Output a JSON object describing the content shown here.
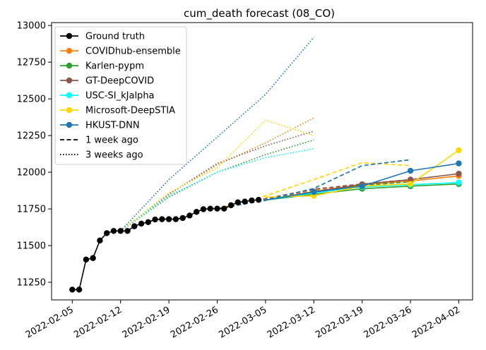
{
  "chart_data": {
    "type": "line",
    "title": "cum_death forecast (08_CO)",
    "xlabel": "",
    "ylabel": "",
    "x_ticks": [
      "2022-02-05",
      "2022-02-12",
      "2022-02-19",
      "2022-02-26",
      "2022-03-05",
      "2022-03-12",
      "2022-03-19",
      "2022-03-26",
      "2022-04-02"
    ],
    "y_ticks": [
      11250,
      11500,
      11750,
      12000,
      12250,
      12500,
      12750,
      13000
    ],
    "xlim": [
      "2022-02-02",
      "2022-04-04"
    ],
    "ylim": [
      11130,
      13020
    ],
    "grid": false,
    "legend_position": "top-left",
    "legend": [
      {
        "label": "Ground truth",
        "color": "#000000",
        "style": "solid-marker"
      },
      {
        "label": "COVIDhub-ensemble",
        "color": "#ff7f0e",
        "style": "solid-marker"
      },
      {
        "label": "Karlen-pypm",
        "color": "#2ca02c",
        "style": "solid-marker"
      },
      {
        "label": "GT-DeepCOVID",
        "color": "#8c564b",
        "style": "solid-marker"
      },
      {
        "label": "USC-SI_kJalpha",
        "color": "#00ffff",
        "style": "solid-marker"
      },
      {
        "label": "Microsoft-DeepSTIA",
        "color": "#ffd700",
        "style": "solid-marker"
      },
      {
        "label": "HKUST-DNN",
        "color": "#1f77b4",
        "style": "solid-marker"
      },
      {
        "label": "1 week ago",
        "color": "#000000",
        "style": "dashed"
      },
      {
        "label": "3 weeks ago",
        "color": "#000000",
        "style": "dotted"
      }
    ],
    "ground_truth": {
      "name": "Ground truth",
      "color": "#000000",
      "points": [
        [
          "2022-02-05",
          11200
        ],
        [
          "2022-02-06",
          11200
        ],
        [
          "2022-02-07",
          11405
        ],
        [
          "2022-02-08",
          11415
        ],
        [
          "2022-02-09",
          11535
        ],
        [
          "2022-02-10",
          11585
        ],
        [
          "2022-02-11",
          11600
        ],
        [
          "2022-02-12",
          11600
        ],
        [
          "2022-02-13",
          11600
        ],
        [
          "2022-02-14",
          11632
        ],
        [
          "2022-02-15",
          11650
        ],
        [
          "2022-02-16",
          11660
        ],
        [
          "2022-02-17",
          11678
        ],
        [
          "2022-02-18",
          11680
        ],
        [
          "2022-02-19",
          11680
        ],
        [
          "2022-02-20",
          11680
        ],
        [
          "2022-02-21",
          11688
        ],
        [
          "2022-02-22",
          11705
        ],
        [
          "2022-02-23",
          11730
        ],
        [
          "2022-02-24",
          11748
        ],
        [
          "2022-02-25",
          11752
        ],
        [
          "2022-02-26",
          11752
        ],
        [
          "2022-02-27",
          11752
        ],
        [
          "2022-02-28",
          11775
        ],
        [
          "2022-03-01",
          11795
        ],
        [
          "2022-03-02",
          11800
        ],
        [
          "2022-03-03",
          11808
        ],
        [
          "2022-03-04",
          11812
        ]
      ]
    },
    "forecasts": [
      {
        "name": "COVIDhub-ensemble",
        "color": "#ff7f0e",
        "style": "solid",
        "points": [
          [
            "2022-03-05",
            11810
          ],
          [
            "2022-03-12",
            11862
          ],
          [
            "2022-03-19",
            11915
          ],
          [
            "2022-03-26",
            11940
          ],
          [
            "2022-04-02",
            11975
          ]
        ]
      },
      {
        "name": "COVIDhub-ensemble",
        "color": "#ff7f0e",
        "style": "dashed",
        "points": [
          [
            "2022-02-26",
            11752
          ],
          [
            "2022-03-05",
            11815
          ],
          [
            "2022-03-12",
            11880
          ],
          [
            "2022-03-19",
            11915
          ],
          [
            "2022-03-26",
            11945
          ]
        ]
      },
      {
        "name": "COVIDhub-ensemble",
        "color": "#ff7f0e",
        "style": "dotted",
        "points": [
          [
            "2022-02-12",
            11600
          ],
          [
            "2022-02-19",
            11850
          ],
          [
            "2022-02-26",
            12050
          ],
          [
            "2022-03-05",
            12200
          ],
          [
            "2022-03-12",
            12370
          ]
        ]
      },
      {
        "name": "Karlen-pypm",
        "color": "#2ca02c",
        "style": "solid",
        "points": [
          [
            "2022-03-05",
            11810
          ],
          [
            "2022-03-12",
            11850
          ],
          [
            "2022-03-19",
            11888
          ],
          [
            "2022-03-26",
            11905
          ],
          [
            "2022-04-02",
            11920
          ]
        ]
      },
      {
        "name": "Karlen-pypm",
        "color": "#2ca02c",
        "style": "dashed",
        "points": [
          [
            "2022-02-26",
            11752
          ],
          [
            "2022-03-05",
            11808
          ],
          [
            "2022-03-12",
            11870
          ],
          [
            "2022-03-19",
            11910
          ],
          [
            "2022-03-26",
            11935
          ]
        ]
      },
      {
        "name": "Karlen-pypm",
        "color": "#2ca02c",
        "style": "dotted",
        "points": [
          [
            "2022-02-12",
            11600
          ],
          [
            "2022-02-19",
            11830
          ],
          [
            "2022-02-26",
            12000
          ],
          [
            "2022-03-05",
            12120
          ],
          [
            "2022-03-12",
            12220
          ]
        ]
      },
      {
        "name": "GT-DeepCOVID",
        "color": "#8c564b",
        "style": "solid",
        "points": [
          [
            "2022-03-05",
            11810
          ],
          [
            "2022-03-12",
            11868
          ],
          [
            "2022-03-19",
            11918
          ],
          [
            "2022-03-26",
            11950
          ],
          [
            "2022-04-02",
            11990
          ]
        ]
      },
      {
        "name": "GT-DeepCOVID",
        "color": "#8c564b",
        "style": "dashed",
        "points": [
          [
            "2022-02-26",
            11752
          ],
          [
            "2022-03-05",
            11820
          ],
          [
            "2022-03-12",
            11885
          ],
          [
            "2022-03-19",
            11920
          ],
          [
            "2022-03-26",
            11950
          ]
        ]
      },
      {
        "name": "GT-DeepCOVID",
        "color": "#8c564b",
        "style": "dotted",
        "points": [
          [
            "2022-02-12",
            11600
          ],
          [
            "2022-02-19",
            11850
          ],
          [
            "2022-02-26",
            12060
          ],
          [
            "2022-03-05",
            12180
          ],
          [
            "2022-03-12",
            12280
          ]
        ]
      },
      {
        "name": "USC-SI_kJalpha",
        "color": "#00ffff",
        "style": "solid",
        "points": [
          [
            "2022-03-05",
            11810
          ],
          [
            "2022-03-12",
            11860
          ],
          [
            "2022-03-19",
            11900
          ],
          [
            "2022-03-26",
            11915
          ],
          [
            "2022-04-02",
            11930
          ]
        ]
      },
      {
        "name": "USC-SI_kJalpha",
        "color": "#00ffff",
        "style": "dashed",
        "points": [
          [
            "2022-02-26",
            11752
          ],
          [
            "2022-03-05",
            11810
          ],
          [
            "2022-03-12",
            11860
          ],
          [
            "2022-03-19",
            11900
          ],
          [
            "2022-03-26",
            11920
          ]
        ]
      },
      {
        "name": "USC-SI_kJalpha",
        "color": "#00ffff",
        "style": "dotted",
        "points": [
          [
            "2022-02-12",
            11600
          ],
          [
            "2022-02-19",
            11840
          ],
          [
            "2022-02-26",
            12000
          ],
          [
            "2022-03-05",
            12100
          ],
          [
            "2022-03-12",
            12160
          ]
        ]
      },
      {
        "name": "Microsoft-DeepSTIA",
        "color": "#ffd700",
        "style": "solid",
        "points": [
          [
            "2022-03-05",
            11830
          ],
          [
            "2022-03-12",
            11840
          ],
          [
            "2022-03-19",
            11905
          ],
          [
            "2022-03-26",
            11920
          ],
          [
            "2022-04-02",
            12150
          ]
        ]
      },
      {
        "name": "Microsoft-DeepSTIA",
        "color": "#ffd700",
        "style": "dashed",
        "points": [
          [
            "2022-02-26",
            11752
          ],
          [
            "2022-03-05",
            11840
          ],
          [
            "2022-03-12",
            11950
          ],
          [
            "2022-03-19",
            12065
          ],
          [
            "2022-03-26",
            12045
          ]
        ]
      },
      {
        "name": "Microsoft-DeepSTIA",
        "color": "#ffd700",
        "style": "dotted",
        "points": [
          [
            "2022-02-12",
            11600
          ],
          [
            "2022-02-19",
            11860
          ],
          [
            "2022-02-26",
            12030
          ],
          [
            "2022-03-05",
            12355
          ],
          [
            "2022-03-12",
            12250
          ]
        ]
      },
      {
        "name": "HKUST-DNN",
        "color": "#1f77b4",
        "style": "solid",
        "points": [
          [
            "2022-03-05",
            11810
          ],
          [
            "2022-03-12",
            11865
          ],
          [
            "2022-03-19",
            11905
          ],
          [
            "2022-03-26",
            12010
          ],
          [
            "2022-04-02",
            12060
          ]
        ]
      },
      {
        "name": "HKUST-DNN",
        "color": "#1f77b4",
        "style": "dashed",
        "points": [
          [
            "2022-02-26",
            11752
          ],
          [
            "2022-03-05",
            11810
          ],
          [
            "2022-03-12",
            11890
          ],
          [
            "2022-03-19",
            12045
          ],
          [
            "2022-03-26",
            12085
          ]
        ]
      },
      {
        "name": "HKUST-DNN",
        "color": "#1f77b4",
        "style": "dotted",
        "points": [
          [
            "2022-02-12",
            11600
          ],
          [
            "2022-02-19",
            11950
          ],
          [
            "2022-02-26",
            12240
          ],
          [
            "2022-03-05",
            12530
          ],
          [
            "2022-03-12",
            12920
          ]
        ]
      }
    ]
  }
}
